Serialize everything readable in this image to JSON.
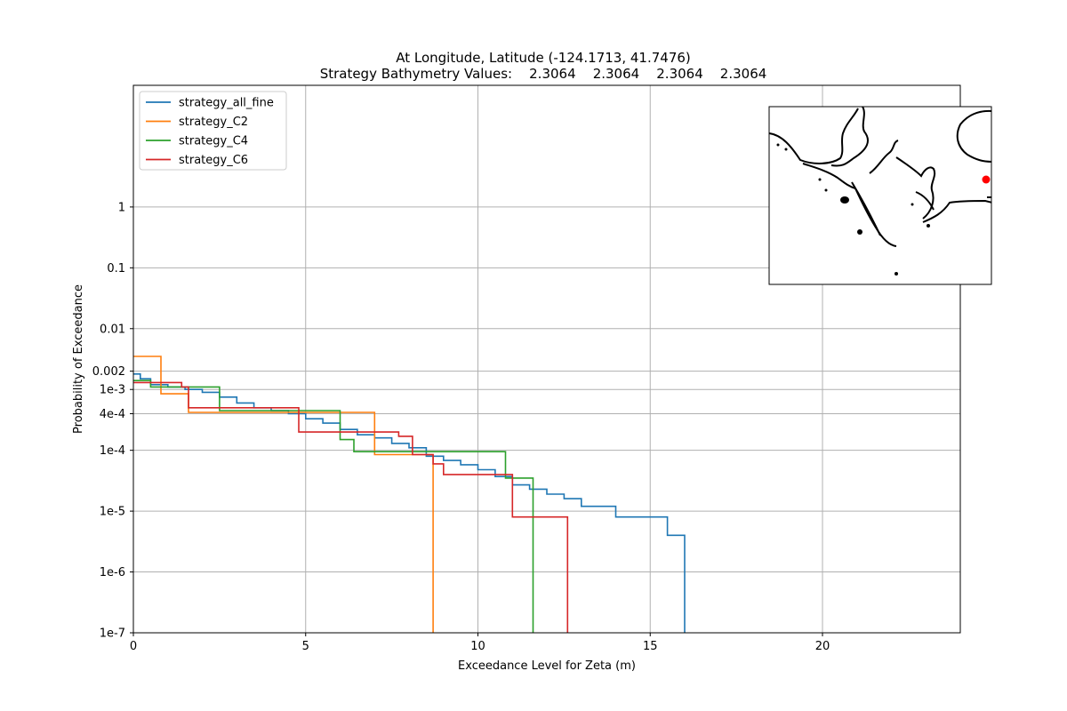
{
  "chart_data": {
    "type": "line",
    "step": true,
    "title": "At Longitude, Latitude (-124.1713,  41.7476)",
    "subtitle": "Strategy Bathymetry Values:    2.3064    2.3064    2.3064    2.3064",
    "xlabel": "Exceedance Level for Zeta (m)",
    "ylabel": "Probability of Exceedance",
    "y_scale": "log",
    "xlim": [
      0,
      24
    ],
    "ylim": [
      1e-07,
      100
    ],
    "x_ticks": [
      {
        "value": 0,
        "label": "0"
      },
      {
        "value": 5,
        "label": "5"
      },
      {
        "value": 10,
        "label": "10"
      },
      {
        "value": 15,
        "label": "15"
      },
      {
        "value": 20,
        "label": "20"
      }
    ],
    "y_ticks": [
      {
        "value": 1e-07,
        "label": "1e-7"
      },
      {
        "value": 1e-06,
        "label": "1e-6"
      },
      {
        "value": 1e-05,
        "label": "1e-5"
      },
      {
        "value": 0.0001,
        "label": "1e-4"
      },
      {
        "value": 0.0004,
        "label": "4e-4"
      },
      {
        "value": 0.001,
        "label": "1e-3"
      },
      {
        "value": 0.002,
        "label": "0.002"
      },
      {
        "value": 0.01,
        "label": "0.01"
      },
      {
        "value": 0.1,
        "label": "0.1"
      },
      {
        "value": 1,
        "label": "1"
      }
    ],
    "grid": true,
    "legend_position": "upper-left",
    "series": [
      {
        "name": "strategy_all_fine",
        "color": "#1f77b4",
        "x": [
          0.0,
          0.2,
          0.5,
          1.0,
          1.5,
          2.0,
          2.5,
          3.0,
          3.5,
          4.0,
          4.5,
          5.0,
          5.5,
          6.0,
          6.5,
          7.0,
          7.5,
          8.0,
          8.5,
          9.0,
          9.5,
          10.0,
          10.5,
          11.0,
          11.5,
          12.0,
          12.5,
          13.0,
          13.5,
          14.0,
          14.5,
          15.0,
          15.5,
          16.0
        ],
        "y": [
          0.0018,
          0.0015,
          0.0012,
          0.0011,
          0.001,
          0.0009,
          0.00075,
          0.0006,
          0.0005,
          0.00045,
          0.0004,
          0.00033,
          0.00028,
          0.00022,
          0.00018,
          0.00016,
          0.00013,
          0.00011,
          8e-05,
          6.8e-05,
          5.8e-05,
          4.8e-05,
          3.7e-05,
          2.7e-05,
          2.3e-05,
          1.9e-05,
          1.6e-05,
          1.2e-05,
          1.2e-05,
          8e-06,
          8e-06,
          8e-06,
          4e-06,
          4e-06
        ]
      },
      {
        "name": "strategy_C2",
        "color": "#ff7f0e",
        "x": [
          0.0,
          0.8,
          1.6,
          7.0,
          8.7
        ],
        "y": [
          0.0035,
          0.00085,
          0.00042,
          8.5e-05,
          8.5e-05
        ]
      },
      {
        "name": "strategy_C4",
        "color": "#2ca02c",
        "x": [
          0.0,
          0.5,
          2.5,
          6.0,
          6.4,
          10.8,
          11.6
        ],
        "y": [
          0.0014,
          0.0011,
          0.00045,
          0.00015,
          9.5e-05,
          3.5e-05,
          3.5e-05
        ]
      },
      {
        "name": "strategy_C6",
        "color": "#d62728",
        "x": [
          0.0,
          1.4,
          1.6,
          4.8,
          7.7,
          8.1,
          8.7,
          9.0,
          11.0,
          12.6
        ],
        "y": [
          0.0013,
          0.0011,
          0.0005,
          0.0002,
          0.00017,
          8.5e-05,
          6e-05,
          4e-05,
          8e-06,
          8e-06
        ]
      }
    ]
  },
  "inset_map": {
    "marker_color": "#ff0000"
  }
}
